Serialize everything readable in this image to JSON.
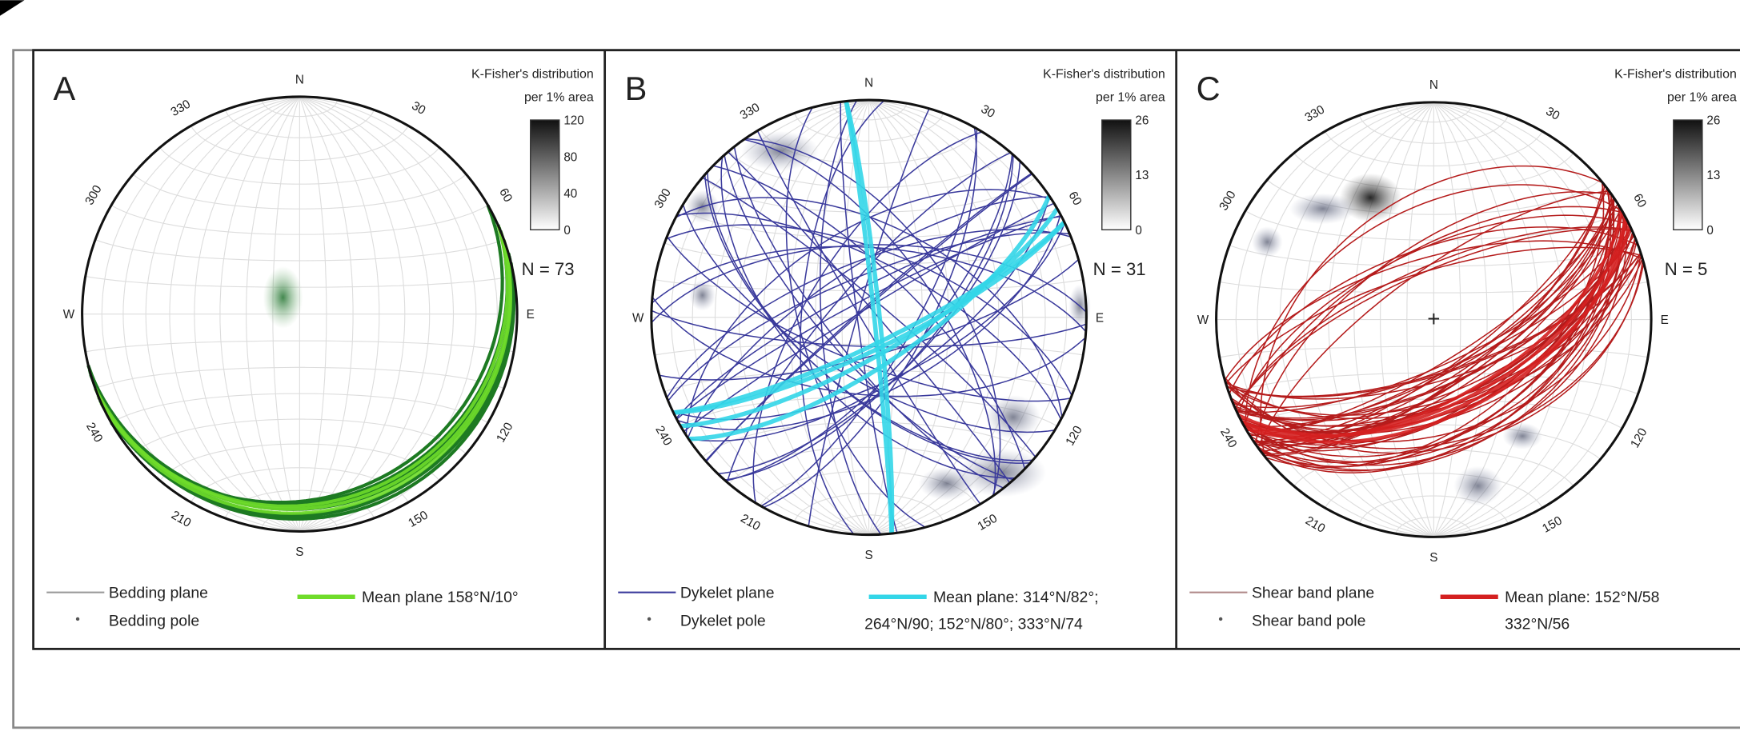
{
  "panels": [
    {
      "letter": "A",
      "density_title": "K-Fisher's distribution",
      "density_subtitle": "per 1% area",
      "scale_ticks": [
        120,
        80,
        40,
        0
      ],
      "n_label": "N = 73",
      "directions": {
        "n": "N",
        "e": "E",
        "s": "S",
        "w": "W"
      },
      "degree_labels": [
        "30",
        "60",
        "120",
        "150",
        "210",
        "240",
        "300",
        "330"
      ],
      "legend": {
        "plane": "Bedding plane",
        "pole": "Bedding pole",
        "mean_plane": [
          "Mean plane  158°N/10°"
        ]
      },
      "plane_color": "#9a9a9a",
      "mean_color": "#6fdc2a"
    },
    {
      "letter": "B",
      "density_title": "K-Fisher's distribution",
      "density_subtitle": "per 1% area",
      "scale_ticks": [
        26,
        13,
        0
      ],
      "n_label": "N = 31",
      "directions": {
        "n": "N",
        "e": "E",
        "s": "S",
        "w": "W"
      },
      "degree_labels": [
        "30",
        "60",
        "120",
        "150",
        "210",
        "240",
        "300",
        "330"
      ],
      "legend": {
        "plane": "Dykelet plane",
        "pole": "Dykelet pole",
        "mean_plane": [
          "Mean plane:  314°N/82°;",
          "264°N/90; 152°N/80°; 333°N/74"
        ]
      },
      "plane_color": "#3a3a9c",
      "mean_color": "#33d6e8"
    },
    {
      "letter": "C",
      "density_title": "K-Fisher's distribution",
      "density_subtitle": "per 1% area",
      "scale_ticks": [
        26,
        13,
        0
      ],
      "n_label": "N = 5",
      "directions": {
        "n": "N",
        "e": "E",
        "s": "S",
        "w": "W"
      },
      "degree_labels": [
        "30",
        "60",
        "120",
        "150",
        "210",
        "240",
        "300",
        "330"
      ],
      "legend": {
        "plane": "Shear band plane",
        "pole": "Shear band pole",
        "mean_plane": [
          "Mean plane:  152°N/58",
          "332°N/56"
        ]
      },
      "plane_color": "#b08a8a",
      "mean_color": "#d42020"
    }
  ]
}
